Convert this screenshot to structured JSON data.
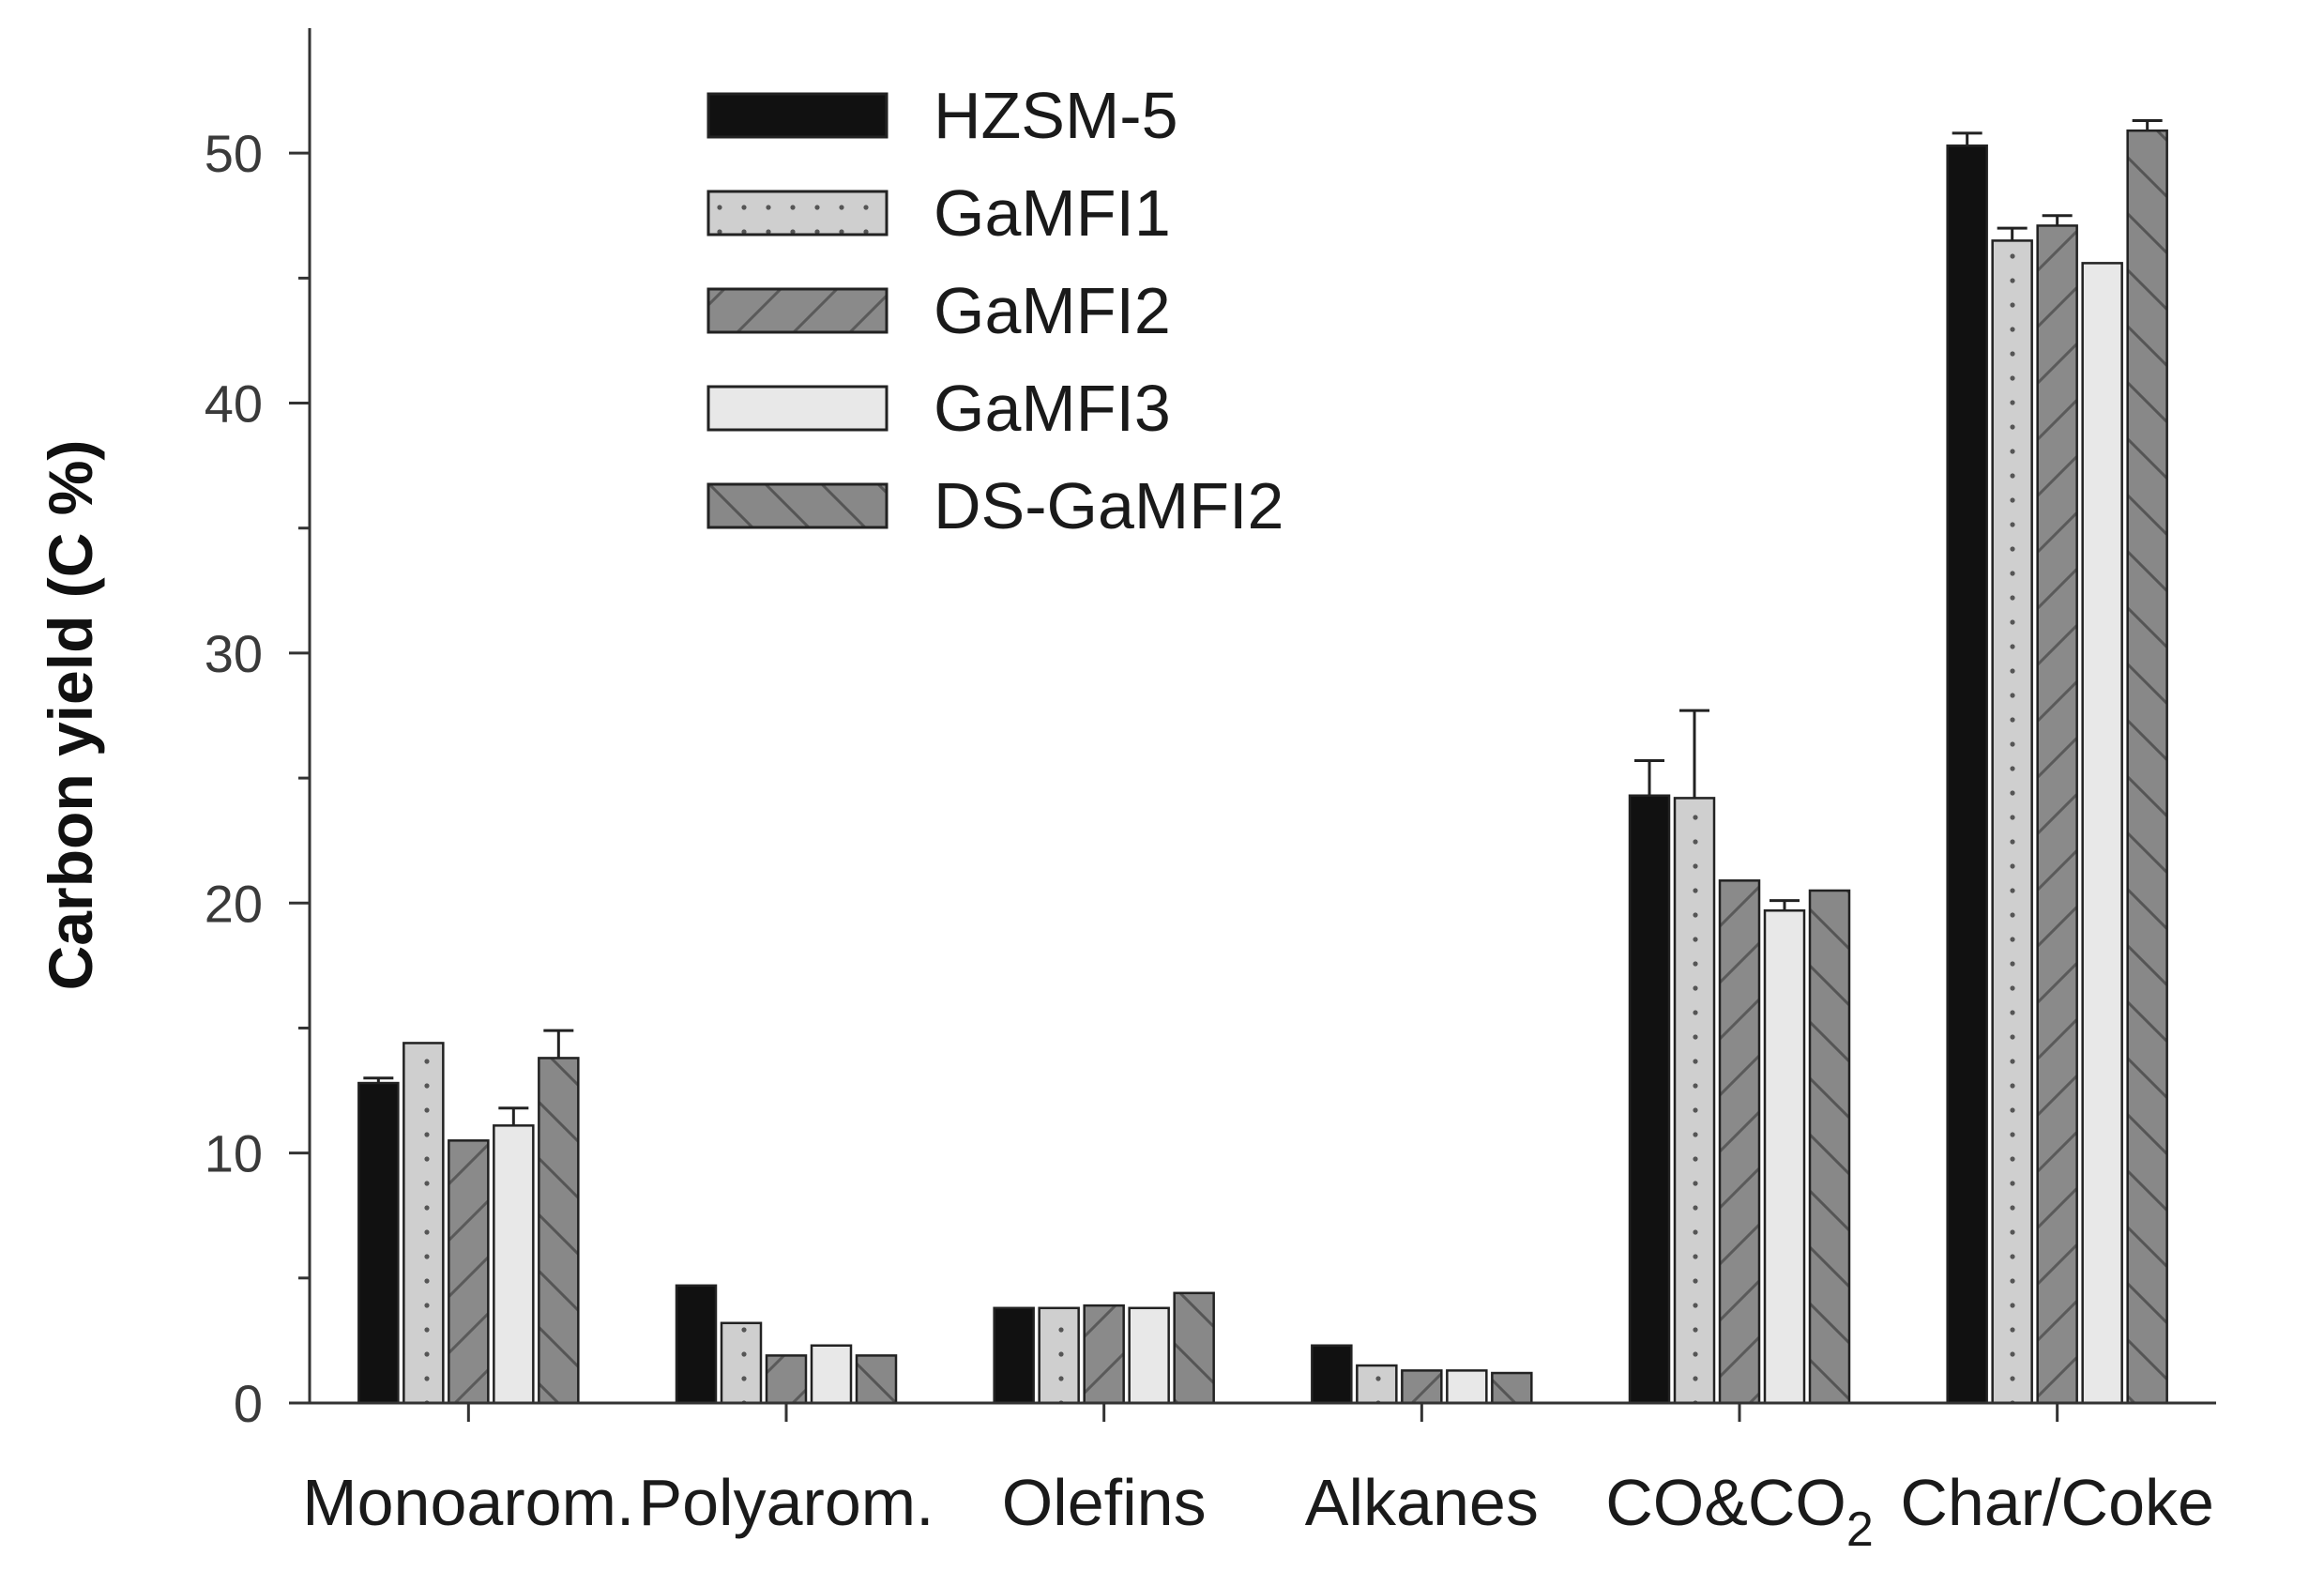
{
  "chart_data": {
    "type": "bar",
    "ylabel": "Carbon yield (C %)",
    "xlabel": "",
    "ylim": [
      0,
      55
    ],
    "yticks": [
      0,
      10,
      20,
      30,
      40,
      50
    ],
    "ytick_labels": [
      "0",
      "10",
      "20",
      "30",
      "40",
      "50"
    ],
    "minor_yticks": [
      5,
      15,
      25,
      35,
      45
    ],
    "grid": false,
    "legend_position": "top-center",
    "categories": [
      {
        "label": "Monoarom.",
        "sub": ""
      },
      {
        "label": "Polyarom.",
        "sub": ""
      },
      {
        "label": "Olefins",
        "sub": ""
      },
      {
        "label": "Alkanes",
        "sub": ""
      },
      {
        "label": "CO&CO",
        "sub": "2"
      },
      {
        "label": "Char/Coke",
        "sub": ""
      }
    ],
    "series": [
      {
        "name": "HZSM-5",
        "pattern": "solid",
        "fill": "#111111",
        "values": [
          12.8,
          4.7,
          3.8,
          2.3,
          24.3,
          50.3
        ],
        "errors": [
          0.2,
          0.1,
          0.1,
          0.1,
          1.4,
          0.5
        ]
      },
      {
        "name": "GaMFI1",
        "pattern": "dots",
        "fill": "#cfcfcf",
        "values": [
          14.4,
          3.2,
          3.8,
          1.5,
          24.2,
          46.5
        ],
        "errors": [
          0.1,
          0.1,
          0.1,
          0.1,
          3.5,
          0.5
        ]
      },
      {
        "name": "GaMFI2",
        "pattern": "forward-hatch",
        "fill": "#8a8a8a",
        "values": [
          10.5,
          1.9,
          3.9,
          1.3,
          20.9,
          47.1
        ],
        "errors": [
          0.1,
          0.1,
          0.1,
          0.1,
          0.1,
          0.4
        ]
      },
      {
        "name": "GaMFI3",
        "pattern": "light",
        "fill": "#e8e8e8",
        "values": [
          11.1,
          2.3,
          3.8,
          1.3,
          19.7,
          45.6
        ],
        "errors": [
          0.7,
          0.1,
          0.1,
          0.1,
          0.4,
          0.1
        ]
      },
      {
        "name": "DS-GaMFI2",
        "pattern": "back-hatch",
        "fill": "#888888",
        "values": [
          13.8,
          1.9,
          4.4,
          1.2,
          20.5,
          50.9
        ],
        "errors": [
          1.1,
          0.1,
          0.1,
          0.1,
          0.1,
          0.4
        ]
      }
    ]
  }
}
